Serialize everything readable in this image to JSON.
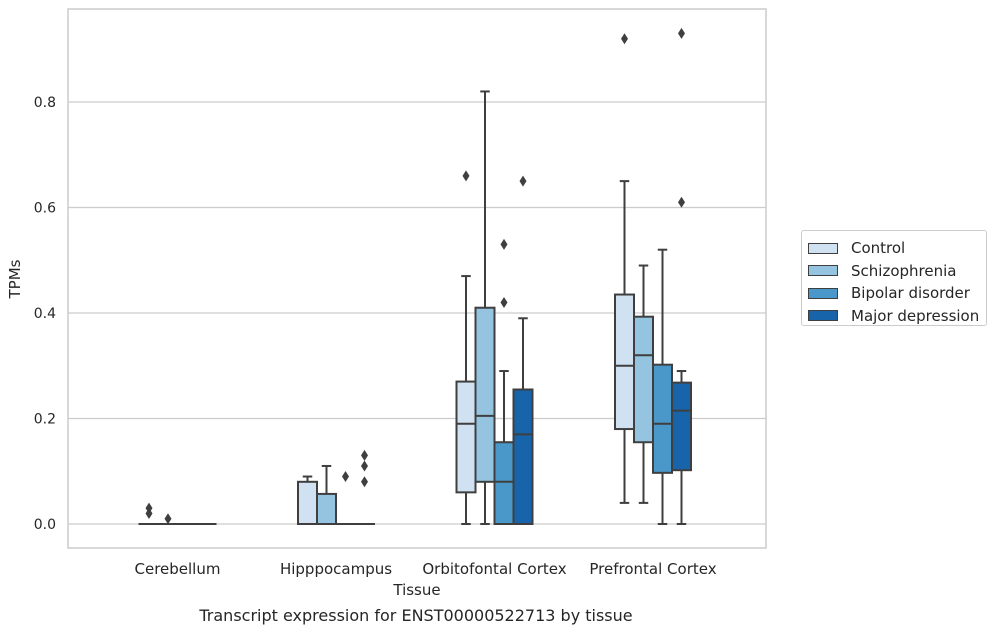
{
  "caption": "Transcript expression for ENST00000522713 by tissue",
  "chart_data": {
    "type": "boxplot",
    "xlabel": "Tissue",
    "ylabel": "TPMs",
    "categories": [
      "Cerebellum",
      "Hipppocampus",
      "Orbitofontal Cortex",
      "Prefrontal Cortex"
    ],
    "ylim": [
      -0.045,
      0.98
    ],
    "yticks": [
      "0.0",
      "0.2",
      "0.4",
      "0.6",
      "0.8"
    ],
    "ytick_values": [
      0.0,
      0.2,
      0.4,
      0.6,
      0.8
    ],
    "grid": true,
    "legend_position": "right",
    "series": [
      {
        "name": "Control",
        "color": "#d0e1f2",
        "boxes": [
          {
            "whislo": 0,
            "q1": 0,
            "med": 0,
            "q3": 0,
            "whishi": 0,
            "fliers": [
              0.03,
              0.02
            ]
          },
          {
            "whislo": 0,
            "q1": 0,
            "med": 0,
            "q3": 0.08,
            "whishi": 0.09,
            "fliers": []
          },
          {
            "whislo": 0,
            "q1": 0.06,
            "med": 0.19,
            "q3": 0.27,
            "whishi": 0.47,
            "fliers": [
              0.66
            ]
          },
          {
            "whislo": 0.04,
            "q1": 0.18,
            "med": 0.3,
            "q3": 0.435,
            "whishi": 0.65,
            "fliers": [
              0.92
            ]
          }
        ]
      },
      {
        "name": "Schizophrenia",
        "color": "#94c4df",
        "boxes": [
          {
            "whislo": 0,
            "q1": 0,
            "med": 0,
            "q3": 0,
            "whishi": 0,
            "fliers": [
              0.01
            ]
          },
          {
            "whislo": 0,
            "q1": 0,
            "med": 0,
            "q3": 0.057,
            "whishi": 0.11,
            "fliers": []
          },
          {
            "whislo": 0,
            "q1": 0.08,
            "med": 0.205,
            "q3": 0.41,
            "whishi": 0.82,
            "fliers": []
          },
          {
            "whislo": 0.04,
            "q1": 0.155,
            "med": 0.32,
            "q3": 0.393,
            "whishi": 0.49,
            "fliers": []
          }
        ]
      },
      {
        "name": "Bipolar disorder",
        "color": "#4a98c9",
        "boxes": [
          {
            "whislo": 0,
            "q1": 0,
            "med": 0,
            "q3": 0,
            "whishi": 0,
            "fliers": []
          },
          {
            "whislo": 0,
            "q1": 0,
            "med": 0,
            "q3": 0,
            "whishi": 0,
            "fliers": [
              0.09
            ]
          },
          {
            "whislo": 0,
            "q1": 0,
            "med": 0.08,
            "q3": 0.155,
            "whishi": 0.29,
            "fliers": [
              0.53,
              0.42
            ]
          },
          {
            "whislo": 0,
            "q1": 0.097,
            "med": 0.19,
            "q3": 0.302,
            "whishi": 0.52,
            "fliers": []
          }
        ]
      },
      {
        "name": "Major depression",
        "color": "#1764ab",
        "boxes": [
          {
            "whislo": 0,
            "q1": 0,
            "med": 0,
            "q3": 0,
            "whishi": 0,
            "fliers": []
          },
          {
            "whislo": 0,
            "q1": 0,
            "med": 0,
            "q3": 0,
            "whishi": 0,
            "fliers": [
              0.13,
              0.11,
              0.08
            ]
          },
          {
            "whislo": 0,
            "q1": 0,
            "med": 0.17,
            "q3": 0.255,
            "whishi": 0.39,
            "fliers": [
              0.65
            ]
          },
          {
            "whislo": 0,
            "q1": 0.102,
            "med": 0.215,
            "q3": 0.268,
            "whishi": 0.29,
            "fliers": [
              0.93,
              0.61
            ]
          }
        ]
      }
    ]
  }
}
